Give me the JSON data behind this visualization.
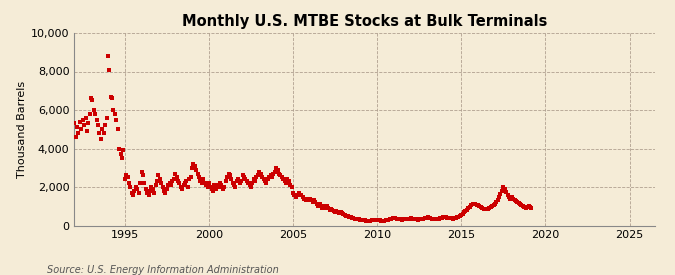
{
  "title": "Monthly U.S. MTBE Stocks at Bulk Terminals",
  "ylabel": "Thousand Barrels",
  "source": "Source: U.S. Energy Information Administration",
  "xlim": [
    1992.0,
    2026.5
  ],
  "ylim": [
    0,
    10000
  ],
  "yticks": [
    0,
    2000,
    4000,
    6000,
    8000,
    10000
  ],
  "xticks": [
    1995,
    2000,
    2005,
    2010,
    2015,
    2020,
    2025
  ],
  "background_color": "#f5ecd7",
  "plot_bg_color": "#f5ecd7",
  "dot_color": "#cc0000",
  "dot_size": 5,
  "dot_marker": "s",
  "data": [
    [
      1992.0,
      5300
    ],
    [
      1992.08,
      4600
    ],
    [
      1992.17,
      5100
    ],
    [
      1992.25,
      4800
    ],
    [
      1992.33,
      5400
    ],
    [
      1992.42,
      5000
    ],
    [
      1992.5,
      5500
    ],
    [
      1992.58,
      5200
    ],
    [
      1992.67,
      5600
    ],
    [
      1992.75,
      4900
    ],
    [
      1992.83,
      5300
    ],
    [
      1992.92,
      5800
    ],
    [
      1993.0,
      6600
    ],
    [
      1993.08,
      6500
    ],
    [
      1993.17,
      6000
    ],
    [
      1993.25,
      5800
    ],
    [
      1993.33,
      5500
    ],
    [
      1993.42,
      5200
    ],
    [
      1993.5,
      4800
    ],
    [
      1993.58,
      4500
    ],
    [
      1993.67,
      5000
    ],
    [
      1993.75,
      4800
    ],
    [
      1993.83,
      5200
    ],
    [
      1993.92,
      5600
    ],
    [
      1994.0,
      8800
    ],
    [
      1994.08,
      8100
    ],
    [
      1994.17,
      6700
    ],
    [
      1994.25,
      6600
    ],
    [
      1994.33,
      6000
    ],
    [
      1994.42,
      5800
    ],
    [
      1994.5,
      5500
    ],
    [
      1994.58,
      5000
    ],
    [
      1994.67,
      4000
    ],
    [
      1994.75,
      3700
    ],
    [
      1994.83,
      3500
    ],
    [
      1994.92,
      3900
    ],
    [
      1995.0,
      2400
    ],
    [
      1995.08,
      2600
    ],
    [
      1995.17,
      2500
    ],
    [
      1995.25,
      2200
    ],
    [
      1995.33,
      2000
    ],
    [
      1995.42,
      1700
    ],
    [
      1995.5,
      1600
    ],
    [
      1995.58,
      1800
    ],
    [
      1995.67,
      2000
    ],
    [
      1995.75,
      1900
    ],
    [
      1995.83,
      1700
    ],
    [
      1995.92,
      2200
    ],
    [
      1996.0,
      2800
    ],
    [
      1996.08,
      2600
    ],
    [
      1996.17,
      2200
    ],
    [
      1996.25,
      1900
    ],
    [
      1996.33,
      1700
    ],
    [
      1996.42,
      1600
    ],
    [
      1996.5,
      1800
    ],
    [
      1996.58,
      2000
    ],
    [
      1996.67,
      1900
    ],
    [
      1996.75,
      1700
    ],
    [
      1996.83,
      2100
    ],
    [
      1996.92,
      2300
    ],
    [
      1997.0,
      2600
    ],
    [
      1997.08,
      2400
    ],
    [
      1997.17,
      2200
    ],
    [
      1997.25,
      2000
    ],
    [
      1997.33,
      1800
    ],
    [
      1997.42,
      1700
    ],
    [
      1997.5,
      1900
    ],
    [
      1997.58,
      2100
    ],
    [
      1997.67,
      2200
    ],
    [
      1997.75,
      2100
    ],
    [
      1997.83,
      2300
    ],
    [
      1997.92,
      2400
    ],
    [
      1998.0,
      2700
    ],
    [
      1998.08,
      2500
    ],
    [
      1998.17,
      2300
    ],
    [
      1998.25,
      2200
    ],
    [
      1998.33,
      2000
    ],
    [
      1998.42,
      1900
    ],
    [
      1998.5,
      2100
    ],
    [
      1998.58,
      2200
    ],
    [
      1998.67,
      2300
    ],
    [
      1998.75,
      2000
    ],
    [
      1998.83,
      2400
    ],
    [
      1998.92,
      2500
    ],
    [
      1999.0,
      3000
    ],
    [
      1999.08,
      3200
    ],
    [
      1999.17,
      3100
    ],
    [
      1999.25,
      2900
    ],
    [
      1999.33,
      2700
    ],
    [
      1999.42,
      2500
    ],
    [
      1999.5,
      2300
    ],
    [
      1999.58,
      2200
    ],
    [
      1999.67,
      2400
    ],
    [
      1999.75,
      2200
    ],
    [
      1999.83,
      2100
    ],
    [
      1999.92,
      2000
    ],
    [
      2000.0,
      2200
    ],
    [
      2000.08,
      2000
    ],
    [
      2000.17,
      1900
    ],
    [
      2000.25,
      1800
    ],
    [
      2000.33,
      2100
    ],
    [
      2000.42,
      1900
    ],
    [
      2000.5,
      2100
    ],
    [
      2000.58,
      2000
    ],
    [
      2000.67,
      2200
    ],
    [
      2000.75,
      2100
    ],
    [
      2000.83,
      1900
    ],
    [
      2000.92,
      2000
    ],
    [
      2001.0,
      2300
    ],
    [
      2001.08,
      2500
    ],
    [
      2001.17,
      2700
    ],
    [
      2001.25,
      2600
    ],
    [
      2001.33,
      2400
    ],
    [
      2001.42,
      2200
    ],
    [
      2001.5,
      2100
    ],
    [
      2001.58,
      2000
    ],
    [
      2001.67,
      2300
    ],
    [
      2001.75,
      2400
    ],
    [
      2001.83,
      2200
    ],
    [
      2001.92,
      2300
    ],
    [
      2002.0,
      2600
    ],
    [
      2002.08,
      2500
    ],
    [
      2002.17,
      2400
    ],
    [
      2002.25,
      2300
    ],
    [
      2002.33,
      2200
    ],
    [
      2002.42,
      2100
    ],
    [
      2002.5,
      2000
    ],
    [
      2002.58,
      2200
    ],
    [
      2002.67,
      2400
    ],
    [
      2002.75,
      2300
    ],
    [
      2002.83,
      2500
    ],
    [
      2002.92,
      2600
    ],
    [
      2003.0,
      2800
    ],
    [
      2003.08,
      2700
    ],
    [
      2003.17,
      2500
    ],
    [
      2003.25,
      2400
    ],
    [
      2003.33,
      2300
    ],
    [
      2003.42,
      2200
    ],
    [
      2003.5,
      2400
    ],
    [
      2003.58,
      2500
    ],
    [
      2003.67,
      2600
    ],
    [
      2003.75,
      2500
    ],
    [
      2003.83,
      2700
    ],
    [
      2003.92,
      2800
    ],
    [
      2004.0,
      3000
    ],
    [
      2004.08,
      2900
    ],
    [
      2004.17,
      2700
    ],
    [
      2004.25,
      2600
    ],
    [
      2004.33,
      2500
    ],
    [
      2004.42,
      2400
    ],
    [
      2004.5,
      2300
    ],
    [
      2004.58,
      2200
    ],
    [
      2004.67,
      2400
    ],
    [
      2004.75,
      2300
    ],
    [
      2004.83,
      2100
    ],
    [
      2004.92,
      2000
    ],
    [
      2005.0,
      1700
    ],
    [
      2005.08,
      1600
    ],
    [
      2005.17,
      1500
    ],
    [
      2005.25,
      1600
    ],
    [
      2005.33,
      1700
    ],
    [
      2005.42,
      1600
    ],
    [
      2005.5,
      1600
    ],
    [
      2005.58,
      1500
    ],
    [
      2005.67,
      1400
    ],
    [
      2005.75,
      1300
    ],
    [
      2005.83,
      1400
    ],
    [
      2005.92,
      1300
    ],
    [
      2006.0,
      1400
    ],
    [
      2006.08,
      1300
    ],
    [
      2006.17,
      1200
    ],
    [
      2006.25,
      1300
    ],
    [
      2006.33,
      1200
    ],
    [
      2006.42,
      1100
    ],
    [
      2006.5,
      1000
    ],
    [
      2006.58,
      1100
    ],
    [
      2006.67,
      1000
    ],
    [
      2006.75,
      900
    ],
    [
      2006.83,
      1000
    ],
    [
      2006.92,
      900
    ],
    [
      2007.0,
      1000
    ],
    [
      2007.08,
      900
    ],
    [
      2007.17,
      800
    ],
    [
      2007.25,
      850
    ],
    [
      2007.33,
      800
    ],
    [
      2007.42,
      750
    ],
    [
      2007.5,
      700
    ],
    [
      2007.58,
      750
    ],
    [
      2007.67,
      700
    ],
    [
      2007.75,
      650
    ],
    [
      2007.83,
      700
    ],
    [
      2007.92,
      650
    ],
    [
      2008.0,
      600
    ],
    [
      2008.08,
      550
    ],
    [
      2008.17,
      500
    ],
    [
      2008.25,
      480
    ],
    [
      2008.33,
      460
    ],
    [
      2008.42,
      440
    ],
    [
      2008.5,
      400
    ],
    [
      2008.58,
      380
    ],
    [
      2008.67,
      360
    ],
    [
      2008.75,
      340
    ],
    [
      2008.83,
      330
    ],
    [
      2008.92,
      320
    ],
    [
      2009.0,
      300
    ],
    [
      2009.08,
      280
    ],
    [
      2009.17,
      260
    ],
    [
      2009.25,
      270
    ],
    [
      2009.33,
      250
    ],
    [
      2009.42,
      240
    ],
    [
      2009.5,
      230
    ],
    [
      2009.58,
      240
    ],
    [
      2009.67,
      260
    ],
    [
      2009.75,
      270
    ],
    [
      2009.83,
      280
    ],
    [
      2009.92,
      290
    ],
    [
      2010.0,
      300
    ],
    [
      2010.08,
      280
    ],
    [
      2010.17,
      260
    ],
    [
      2010.25,
      250
    ],
    [
      2010.33,
      240
    ],
    [
      2010.42,
      250
    ],
    [
      2010.5,
      260
    ],
    [
      2010.58,
      280
    ],
    [
      2010.67,
      300
    ],
    [
      2010.75,
      320
    ],
    [
      2010.83,
      350
    ],
    [
      2010.92,
      380
    ],
    [
      2011.0,
      400
    ],
    [
      2011.08,
      380
    ],
    [
      2011.17,
      360
    ],
    [
      2011.25,
      340
    ],
    [
      2011.33,
      330
    ],
    [
      2011.42,
      320
    ],
    [
      2011.5,
      310
    ],
    [
      2011.58,
      320
    ],
    [
      2011.67,
      330
    ],
    [
      2011.75,
      340
    ],
    [
      2011.83,
      350
    ],
    [
      2011.92,
      360
    ],
    [
      2012.0,
      380
    ],
    [
      2012.08,
      360
    ],
    [
      2012.17,
      340
    ],
    [
      2012.25,
      330
    ],
    [
      2012.33,
      320
    ],
    [
      2012.42,
      310
    ],
    [
      2012.5,
      320
    ],
    [
      2012.58,
      330
    ],
    [
      2012.67,
      340
    ],
    [
      2012.75,
      360
    ],
    [
      2012.83,
      380
    ],
    [
      2012.92,
      400
    ],
    [
      2013.0,
      420
    ],
    [
      2013.08,
      400
    ],
    [
      2013.17,
      380
    ],
    [
      2013.25,
      360
    ],
    [
      2013.33,
      350
    ],
    [
      2013.42,
      340
    ],
    [
      2013.5,
      330
    ],
    [
      2013.58,
      340
    ],
    [
      2013.67,
      360
    ],
    [
      2013.75,
      380
    ],
    [
      2013.83,
      400
    ],
    [
      2013.92,
      420
    ],
    [
      2014.0,
      440
    ],
    [
      2014.08,
      420
    ],
    [
      2014.17,
      400
    ],
    [
      2014.25,
      390
    ],
    [
      2014.33,
      380
    ],
    [
      2014.42,
      370
    ],
    [
      2014.5,
      360
    ],
    [
      2014.58,
      380
    ],
    [
      2014.67,
      400
    ],
    [
      2014.75,
      420
    ],
    [
      2014.83,
      460
    ],
    [
      2014.92,
      500
    ],
    [
      2015.0,
      560
    ],
    [
      2015.08,
      620
    ],
    [
      2015.17,
      680
    ],
    [
      2015.25,
      750
    ],
    [
      2015.33,
      820
    ],
    [
      2015.42,
      900
    ],
    [
      2015.5,
      980
    ],
    [
      2015.58,
      1050
    ],
    [
      2015.67,
      1100
    ],
    [
      2015.75,
      1120
    ],
    [
      2015.83,
      1100
    ],
    [
      2015.92,
      1080
    ],
    [
      2016.0,
      1050
    ],
    [
      2016.08,
      1000
    ],
    [
      2016.17,
      960
    ],
    [
      2016.25,
      920
    ],
    [
      2016.33,
      880
    ],
    [
      2016.42,
      860
    ],
    [
      2016.5,
      840
    ],
    [
      2016.58,
      870
    ],
    [
      2016.67,
      900
    ],
    [
      2016.75,
      950
    ],
    [
      2016.83,
      1000
    ],
    [
      2016.92,
      1050
    ],
    [
      2017.0,
      1100
    ],
    [
      2017.08,
      1200
    ],
    [
      2017.17,
      1350
    ],
    [
      2017.25,
      1500
    ],
    [
      2017.33,
      1650
    ],
    [
      2017.42,
      1800
    ],
    [
      2017.5,
      2000
    ],
    [
      2017.58,
      1900
    ],
    [
      2017.67,
      1750
    ],
    [
      2017.75,
      1600
    ],
    [
      2017.83,
      1500
    ],
    [
      2017.92,
      1400
    ],
    [
      2018.0,
      1500
    ],
    [
      2018.08,
      1400
    ],
    [
      2018.17,
      1300
    ],
    [
      2018.25,
      1250
    ],
    [
      2018.33,
      1200
    ],
    [
      2018.42,
      1150
    ],
    [
      2018.5,
      1100
    ],
    [
      2018.58,
      1050
    ],
    [
      2018.67,
      1000
    ],
    [
      2018.75,
      950
    ],
    [
      2018.83,
      900
    ],
    [
      2018.92,
      950
    ],
    [
      2019.0,
      1000
    ],
    [
      2019.08,
      950
    ],
    [
      2019.17,
      900
    ]
  ]
}
